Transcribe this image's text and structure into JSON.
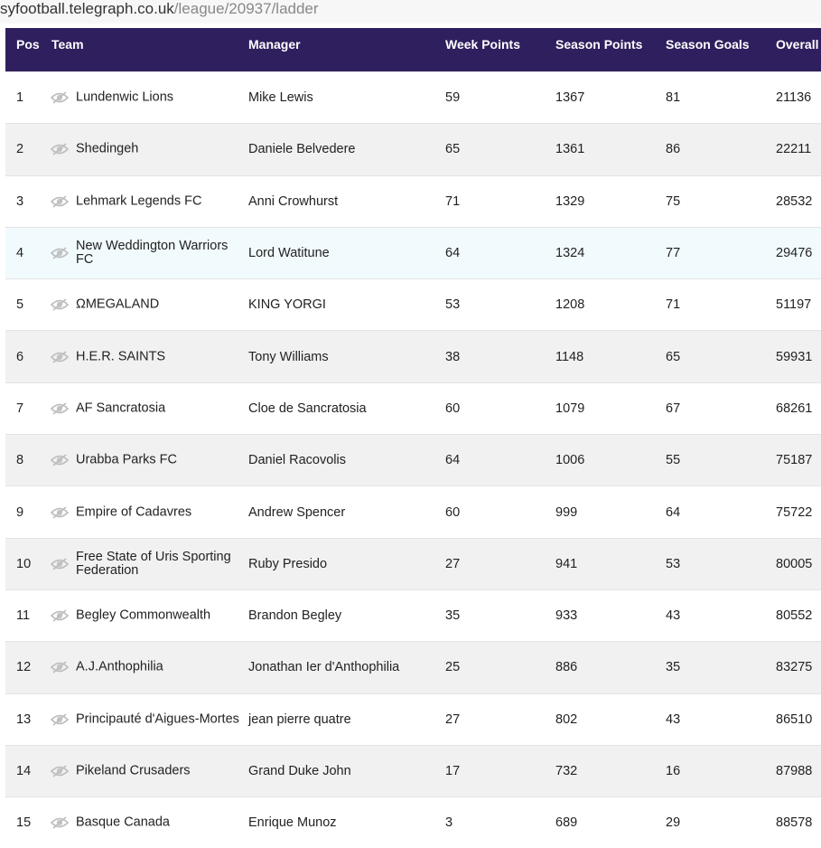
{
  "url": {
    "host": "syfootball.telegraph.co.uk",
    "path": "/league/20937/ladder"
  },
  "headers": {
    "pos": "Pos",
    "team": "Team",
    "manager": "Manager",
    "week": "Week Points",
    "season": "Season Points",
    "goals": "Season Goals",
    "overall": "Overall"
  },
  "rows": [
    {
      "pos": "1",
      "team": "Lundenwic Lions",
      "manager": "Mike Lewis",
      "week": "59",
      "season": "1367",
      "goals": "81",
      "overall": "21136"
    },
    {
      "pos": "2",
      "team": "Shedingeh",
      "manager": "Daniele Belvedere",
      "week": "65",
      "season": "1361",
      "goals": "86",
      "overall": "22211"
    },
    {
      "pos": "3",
      "team": "Lehmark Legends FC",
      "manager": "Anni Crowhurst",
      "week": "71",
      "season": "1329",
      "goals": "75",
      "overall": "28532"
    },
    {
      "pos": "4",
      "team": "New Weddington Warriors FC",
      "manager": "Lord Watitune",
      "week": "64",
      "season": "1324",
      "goals": "77",
      "overall": "29476"
    },
    {
      "pos": "5",
      "team": "ΩMEGALAND",
      "manager": "KING YORGI",
      "week": "53",
      "season": "1208",
      "goals": "71",
      "overall": "51197"
    },
    {
      "pos": "6",
      "team": "H.E.R. SAINTS",
      "manager": "Tony Williams",
      "week": "38",
      "season": "1148",
      "goals": "65",
      "overall": "59931"
    },
    {
      "pos": "7",
      "team": "AF Sancratosia",
      "manager": "Cloe de Sancratosia",
      "week": "60",
      "season": "1079",
      "goals": "67",
      "overall": "68261"
    },
    {
      "pos": "8",
      "team": "Urabba Parks FC",
      "manager": "Daniel Racovolis",
      "week": "64",
      "season": "1006",
      "goals": "55",
      "overall": "75187"
    },
    {
      "pos": "9",
      "team": "Empire of Cadavres",
      "manager": "Andrew Spencer",
      "week": "60",
      "season": "999",
      "goals": "64",
      "overall": "75722"
    },
    {
      "pos": "10",
      "team": "Free State of Uris Sporting Federation",
      "manager": "Ruby Presido",
      "week": "27",
      "season": "941",
      "goals": "53",
      "overall": "80005"
    },
    {
      "pos": "11",
      "team": "Begley Commonwealth",
      "manager": "Brandon Begley",
      "week": "35",
      "season": "933",
      "goals": "43",
      "overall": "80552"
    },
    {
      "pos": "12",
      "team": "A.J.Anthophilia",
      "manager": "Jonathan Ier d'Anthophilia",
      "week": "25",
      "season": "886",
      "goals": "35",
      "overall": "83275"
    },
    {
      "pos": "13",
      "team": "Principauté d'Aigues-Mortes",
      "manager": "jean pierre quatre",
      "week": "27",
      "season": "802",
      "goals": "43",
      "overall": "86510"
    },
    {
      "pos": "14",
      "team": "Pikeland Crusaders",
      "manager": "Grand Duke John",
      "week": "17",
      "season": "732",
      "goals": "16",
      "overall": "87988"
    },
    {
      "pos": "15",
      "team": "Basque Canada",
      "manager": "Enrique Munoz",
      "week": "3",
      "season": "689",
      "goals": "29",
      "overall": "88578"
    }
  ],
  "icons": {
    "row_icon": "hidden-eye-icon"
  },
  "colors": {
    "header_bg": "#2f1f5e",
    "alt_row": "#f1f1f1",
    "highlight_row": "#f1fafd"
  },
  "highlighted_row": 4
}
